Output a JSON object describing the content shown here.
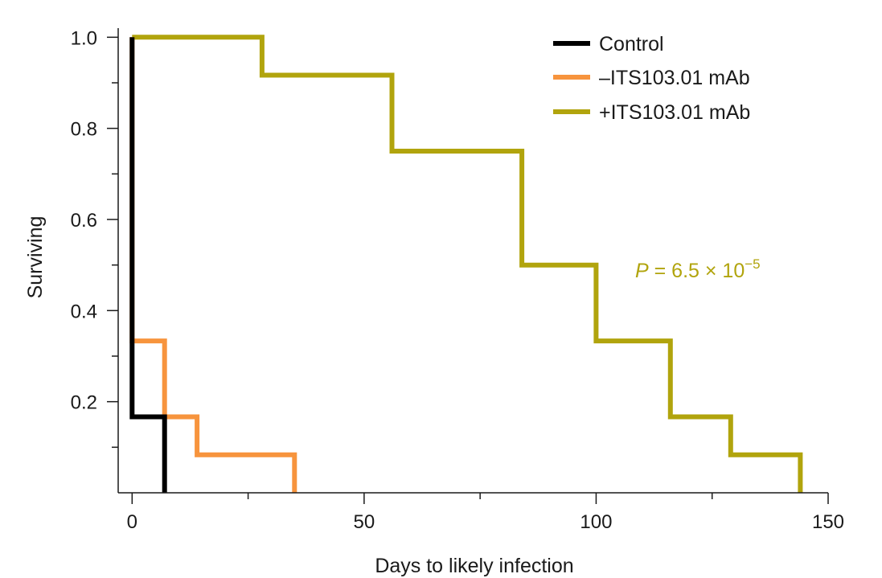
{
  "chart_data": {
    "type": "line",
    "step": true,
    "xlabel": "Days to likely infection",
    "ylabel": "Surviving",
    "xlim": [
      -3,
      150
    ],
    "ylim": [
      0,
      1.02
    ],
    "x_ticks_major": [
      0,
      50,
      100,
      150
    ],
    "x_ticks_minor": [
      25,
      75,
      125
    ],
    "y_ticks_major": [
      0.2,
      0.4,
      0.6,
      0.8,
      1.0
    ],
    "y_tick_labels": [
      "0.2",
      "0.4",
      "0.6",
      "0.8",
      "1.0"
    ],
    "y_ticks_minor": [
      0.1,
      0.3,
      0.5,
      0.7,
      0.9
    ],
    "grid": false,
    "legend_position": "top-right",
    "series": [
      {
        "name": "Control",
        "color": "#000000",
        "x": [
          0,
          0,
          7,
          7
        ],
        "y": [
          1.0,
          0.1667,
          0.1667,
          0
        ]
      },
      {
        "name": "–ITS103.01 mAb",
        "color": "#f7943d",
        "x": [
          0,
          0,
          7,
          7,
          14,
          14,
          35,
          35
        ],
        "y": [
          1.0,
          0.3333,
          0.3333,
          0.1667,
          0.1667,
          0.0833,
          0.0833,
          0
        ]
      },
      {
        "name": "+ITS103.01 mAb",
        "color": "#b1a40d",
        "x": [
          0,
          28,
          28,
          56,
          56,
          84,
          84,
          100,
          100,
          116,
          116,
          129,
          129,
          144,
          144
        ],
        "y": [
          1.0,
          1.0,
          0.9167,
          0.9167,
          0.75,
          0.75,
          0.5,
          0.5,
          0.3333,
          0.3333,
          0.1667,
          0.1667,
          0.0833,
          0.0833,
          0
        ]
      }
    ],
    "annotation": {
      "p_symbol": "P",
      "text": " = 6.5 × 10",
      "exponent": "−5",
      "color": "#b1a40d"
    }
  }
}
